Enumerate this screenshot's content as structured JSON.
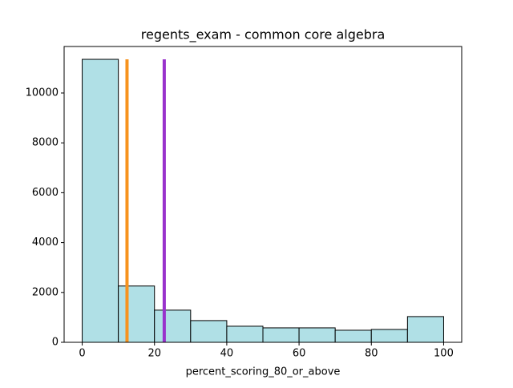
{
  "chart_data": {
    "type": "histogram",
    "title": "regents_exam - common core algebra",
    "xlabel": "percent_scoring_80_or_above",
    "bins": [
      0,
      10,
      20,
      30,
      40,
      50,
      60,
      70,
      80,
      90,
      100
    ],
    "counts": [
      11350,
      2258,
      1290,
      871,
      645,
      580,
      580,
      484,
      516,
      1032
    ],
    "color": "#b0e0e6",
    "edgecolor": "#000000",
    "vlines": [
      {
        "x": 12.4,
        "ymin": 0,
        "ymax": 11350,
        "color": "#f7931e"
      },
      {
        "x": 22.7,
        "ymin": 0,
        "ymax": 11350,
        "color": "#9932cc"
      }
    ],
    "xlim": [
      -5,
      105
    ],
    "ylim": [
      0,
      11865
    ],
    "xticks": [
      0,
      20,
      40,
      60,
      80,
      100
    ],
    "yticks": [
      0,
      2000,
      4000,
      6000,
      8000,
      10000
    ],
    "grid": false
  }
}
